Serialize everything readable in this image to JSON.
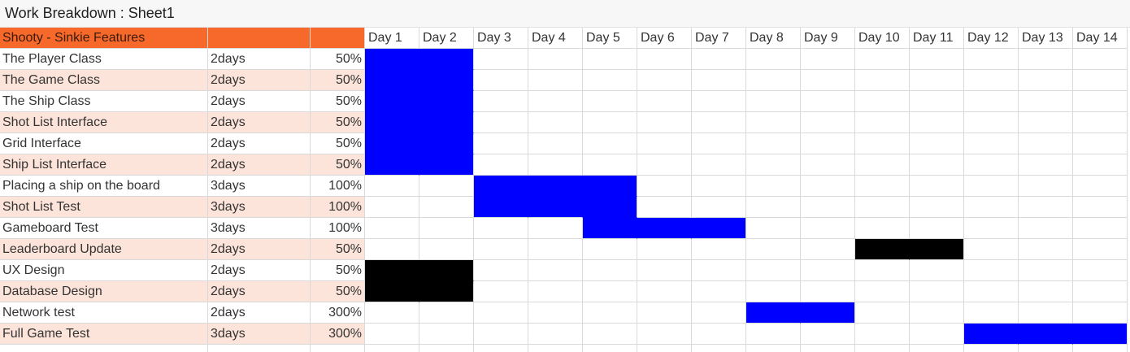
{
  "window": {
    "title": "Work Breakdown : Sheet1"
  },
  "header": {
    "project": "Shooty - Sinkie Features",
    "days": [
      "Day 1",
      "Day 2",
      "Day 3",
      "Day 4",
      "Day 5",
      "Day 6",
      "Day 7",
      "Day 8",
      "Day 9",
      "Day 10",
      "Day 11",
      "Day 12",
      "Day 13",
      "Day 14"
    ]
  },
  "colors": {
    "accent": "#f6692a",
    "band": "#fde4da",
    "bar_blue": "#0000ff",
    "bar_black": "#000000",
    "grid": "#d9d9d9"
  },
  "tasks": [
    {
      "name": "The Player Class",
      "duration": "2days",
      "percent": "50%",
      "start_day": 1,
      "end_day": 2,
      "color": "blue"
    },
    {
      "name": "The Game Class",
      "duration": "2days",
      "percent": "50%",
      "start_day": 1,
      "end_day": 2,
      "color": "blue"
    },
    {
      "name": "The Ship Class",
      "duration": "2days",
      "percent": "50%",
      "start_day": 1,
      "end_day": 2,
      "color": "blue"
    },
    {
      "name": "Shot List Interface",
      "duration": "2days",
      "percent": "50%",
      "start_day": 1,
      "end_day": 2,
      "color": "blue"
    },
    {
      "name": "Grid Interface",
      "duration": "2days",
      "percent": "50%",
      "start_day": 1,
      "end_day": 2,
      "color": "blue"
    },
    {
      "name": "Ship List Interface",
      "duration": "2days",
      "percent": "50%",
      "start_day": 1,
      "end_day": 2,
      "color": "blue"
    },
    {
      "name": "Placing a ship on the board",
      "duration": "3days",
      "percent": "100%",
      "start_day": 3,
      "end_day": 5,
      "color": "blue"
    },
    {
      "name": "Shot List Test",
      "duration": "3days",
      "percent": "100%",
      "start_day": 3,
      "end_day": 5,
      "color": "blue"
    },
    {
      "name": "Gameboard Test",
      "duration": "3days",
      "percent": "100%",
      "start_day": 5,
      "end_day": 7,
      "color": "blue"
    },
    {
      "name": "Leaderboard Update",
      "duration": "2days",
      "percent": "50%",
      "start_day": 10,
      "end_day": 11,
      "color": "black"
    },
    {
      "name": "UX Design",
      "duration": "2days",
      "percent": "50%",
      "start_day": 1,
      "end_day": 2,
      "color": "black"
    },
    {
      "name": "Database Design",
      "duration": "2days",
      "percent": "50%",
      "start_day": 1,
      "end_day": 2,
      "color": "black"
    },
    {
      "name": "Network test",
      "duration": "2days",
      "percent": "300%",
      "start_day": 8,
      "end_day": 9,
      "color": "blue"
    },
    {
      "name": "Full Game Test",
      "duration": "3days",
      "percent": "300%",
      "start_day": 12,
      "end_day": 14,
      "color": "blue"
    }
  ]
}
